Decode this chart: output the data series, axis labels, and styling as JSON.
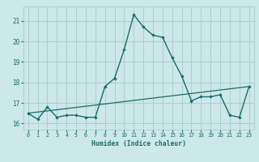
{
  "xlabel": "Humidex (Indice chaleur)",
  "bg_color": "#cce8e8",
  "grid_color": "#a8cccc",
  "line_color": "#1a6b6b",
  "ylim": [
    15.7,
    21.7
  ],
  "xlim": [
    -0.5,
    23.5
  ],
  "yticks": [
    16,
    17,
    18,
    19,
    20,
    21
  ],
  "xticks": [
    0,
    1,
    2,
    3,
    4,
    5,
    6,
    7,
    8,
    9,
    10,
    11,
    12,
    13,
    14,
    15,
    16,
    17,
    18,
    19,
    20,
    21,
    22,
    23
  ],
  "series1_x": [
    0,
    1,
    2,
    3,
    4,
    5,
    6,
    7,
    8,
    9,
    10,
    11,
    12,
    13,
    14,
    15,
    16,
    17,
    18,
    19,
    20,
    21,
    22,
    23
  ],
  "series1_y": [
    16.5,
    16.2,
    16.8,
    16.3,
    16.4,
    16.4,
    16.3,
    16.3,
    17.8,
    18.2,
    19.6,
    21.3,
    20.7,
    20.3,
    20.2,
    19.2,
    18.3,
    17.1,
    17.3,
    17.3,
    17.4,
    16.4,
    16.3,
    17.8
  ],
  "series2_x": [
    0,
    23
  ],
  "series2_y": [
    16.5,
    17.8
  ]
}
